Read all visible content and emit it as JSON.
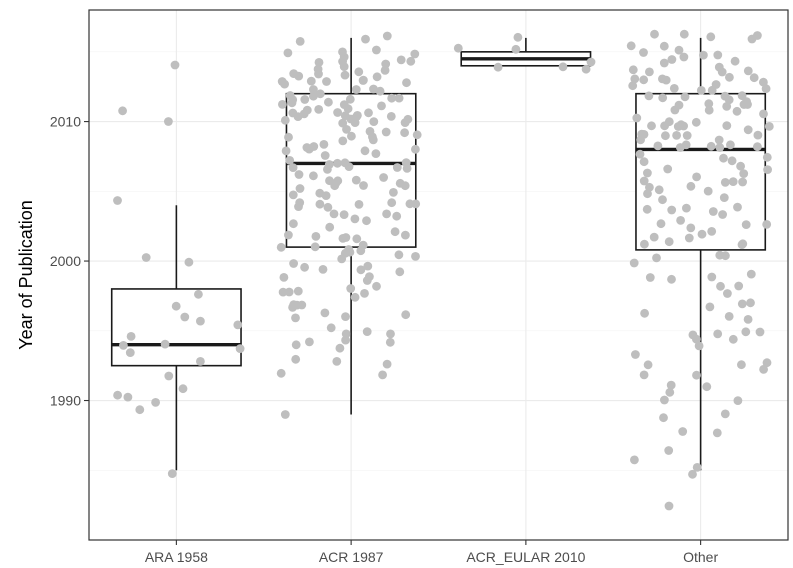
{
  "chart_data": {
    "type": "boxplot",
    "xlabel": "",
    "ylabel": "Year of Publication",
    "categories": [
      "ARA 1958",
      "ACR 1987",
      "ACR_EULAR 2010",
      "Other"
    ],
    "ylim": [
      1980,
      2018
    ],
    "yticks": [
      1990,
      2000,
      2010
    ],
    "grid": true,
    "colors": {
      "point": "#bebebe",
      "box": "#1a1a1a",
      "grid": "#ebebeb",
      "border": "#333333"
    },
    "boxes": [
      {
        "category": "ARA 1958",
        "min": 1985,
        "q1": 1992.5,
        "median": 1994,
        "q3": 1998,
        "max": 2004
      },
      {
        "category": "ACR 1987",
        "min": 1989,
        "q1": 2001,
        "median": 2007,
        "q3": 2012,
        "max": 2016
      },
      {
        "category": "ACR_EULAR 2010",
        "min": 2014,
        "q1": 2014,
        "median": 2014.5,
        "q3": 2015,
        "max": 2016
      },
      {
        "category": "Other",
        "min": 1985,
        "q1": 2000.8,
        "median": 2008,
        "q3": 2012,
        "max": 2016
      }
    ],
    "points": [
      {
        "category": "ARA 1958",
        "values": [
          2014,
          2011,
          2010,
          2004,
          2000,
          2000,
          1998,
          1997,
          1996,
          1996,
          1995,
          1995,
          1994,
          1994,
          1994,
          1993,
          1993,
          1992,
          1991,
          1990,
          1990,
          1990,
          1989,
          1985
        ]
      },
      {
        "category": "ACR 1987",
        "values": [
          2016,
          2016,
          2016,
          2015,
          2015,
          2015,
          2015,
          2015,
          2014,
          2014,
          2014,
          2014,
          2014,
          2014,
          2014,
          2014,
          2014,
          2013,
          2013,
          2013,
          2013,
          2013,
          2013,
          2013,
          2013,
          2013,
          2013,
          2013,
          2013,
          2012,
          2012,
          2012,
          2012,
          2012,
          2012,
          2012,
          2012,
          2012,
          2012,
          2012,
          2012,
          2011,
          2011,
          2011,
          2011,
          2011,
          2011,
          2011,
          2011,
          2011,
          2011,
          2011,
          2011,
          2010,
          2010,
          2010,
          2010,
          2010,
          2010,
          2010,
          2010,
          2010,
          2010,
          2010,
          2010,
          2009,
          2009,
          2009,
          2009,
          2009,
          2009,
          2009,
          2009,
          2009,
          2009,
          2008,
          2008,
          2008,
          2008,
          2008,
          2008,
          2008,
          2008,
          2008,
          2007,
          2007,
          2007,
          2007,
          2007,
          2007,
          2007,
          2007,
          2007,
          2007,
          2006,
          2006,
          2006,
          2006,
          2006,
          2006,
          2006,
          2006,
          2005,
          2005,
          2005,
          2005,
          2005,
          2005,
          2005,
          2005,
          2004,
          2004,
          2004,
          2004,
          2004,
          2004,
          2004,
          2004,
          2003,
          2003,
          2003,
          2003,
          2003,
          2003,
          2003,
          2002,
          2002,
          2002,
          2002,
          2002,
          2002,
          2002,
          2002,
          2001,
          2001,
          2001,
          2001,
          2001,
          2001,
          2001,
          2000,
          2000,
          2000,
          2000,
          2000,
          2000,
          1999,
          1999,
          1999,
          1999,
          1999,
          1999,
          1998,
          1998,
          1998,
          1998,
          1998,
          1998,
          1997,
          1997,
          1997,
          1997,
          1997,
          1996,
          1996,
          1996,
          1996,
          1995,
          1995,
          1995,
          1995,
          1994,
          1994,
          1994,
          1994,
          1994,
          1993,
          1993,
          1993,
          1992,
          1992,
          1989
        ]
      },
      {
        "category": "ACR_EULAR 2010",
        "values": [
          2016,
          2015,
          2015,
          2014.3,
          2014,
          2014,
          2014
        ]
      },
      {
        "category": "Other",
        "values": [
          2016,
          2016,
          2016,
          2016,
          2016,
          2015,
          2015,
          2015,
          2015,
          2015,
          2015,
          2015,
          2014,
          2014,
          2014,
          2014,
          2014,
          2014,
          2014,
          2014,
          2013,
          2013,
          2013,
          2013,
          2013,
          2013,
          2013,
          2013,
          2013,
          2012,
          2012,
          2012,
          2012,
          2012,
          2012,
          2012,
          2012,
          2012,
          2012,
          2011,
          2011,
          2011,
          2011,
          2011,
          2011,
          2011,
          2011,
          2011,
          2011,
          2010,
          2010,
          2010,
          2010,
          2010,
          2010,
          2010,
          2010,
          2010,
          2010,
          2009,
          2009,
          2009,
          2009,
          2009,
          2009,
          2009,
          2009,
          2009,
          2008,
          2008,
          2008,
          2008,
          2008,
          2008,
          2008,
          2008,
          2007,
          2007,
          2007,
          2007,
          2007,
          2007,
          2007,
          2006,
          2006,
          2006,
          2006,
          2006,
          2006,
          2006,
          2005,
          2005,
          2005,
          2005,
          2005,
          2005,
          2004,
          2004,
          2004,
          2004,
          2004,
          2004,
          2003,
          2003,
          2003,
          2003,
          2003,
          2002,
          2002,
          2002,
          2002,
          2002,
          2001,
          2001,
          2001,
          2001,
          2000,
          2000,
          2000,
          2000,
          1999,
          1999,
          1999,
          1999,
          1998,
          1998,
          1998,
          1997,
          1997,
          1997,
          1996,
          1996,
          1996,
          1995,
          1995,
          1995,
          1995,
          1994,
          1994,
          1994,
          1993,
          1993,
          1993,
          1993,
          1992,
          1992,
          1992,
          1991,
          1991,
          1991,
          1990,
          1990,
          1989,
          1989,
          1988,
          1988,
          1986,
          1986,
          1985,
          1985,
          1982
        ]
      }
    ]
  }
}
